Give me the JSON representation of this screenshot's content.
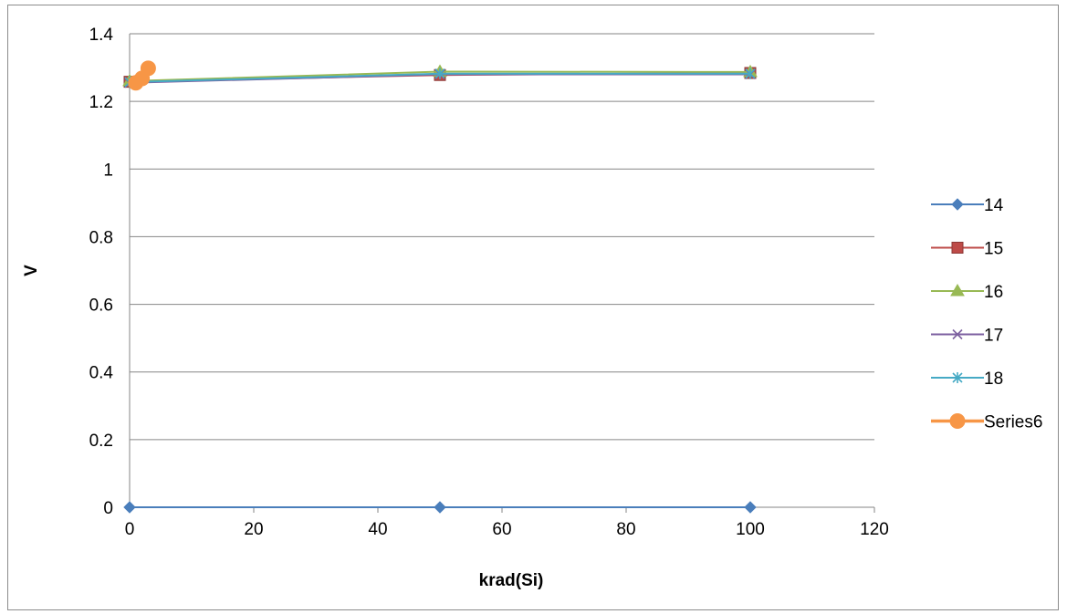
{
  "chart_data": {
    "type": "scatter",
    "title": "",
    "xlabel": "krad(Si)",
    "ylabel": "V",
    "xlim": [
      0,
      120
    ],
    "ylim": [
      0,
      1.4
    ],
    "xticks": [
      "0",
      "20",
      "40",
      "60",
      "80",
      "100",
      "120"
    ],
    "yticks": [
      "0",
      "0.2",
      "0.4",
      "0.6",
      "0.8",
      "1",
      "1.2",
      "1.4"
    ],
    "grid": "horizontal",
    "legend_position": "right",
    "series": [
      {
        "name": "14",
        "color": "#4a7ebb",
        "marker": "diamond",
        "x": [
          0,
          50,
          100
        ],
        "y": [
          0,
          0,
          0
        ]
      },
      {
        "name": "15",
        "color": "#be4b48",
        "marker": "square",
        "x": [
          0,
          50,
          100
        ],
        "y": [
          1.258,
          1.278,
          1.284
        ]
      },
      {
        "name": "16",
        "color": "#98b954",
        "marker": "triangle",
        "x": [
          0,
          50,
          100
        ],
        "y": [
          1.26,
          1.288,
          1.287
        ]
      },
      {
        "name": "17",
        "color": "#7d60a0",
        "marker": "x",
        "x": [
          0,
          50,
          100
        ],
        "y": [
          1.255,
          1.28,
          1.28
        ]
      },
      {
        "name": "18",
        "color": "#46aac5",
        "marker": "star",
        "x": [
          0,
          50,
          100
        ],
        "y": [
          1.257,
          1.282,
          1.282
        ]
      },
      {
        "name": "Series6",
        "color": "#f79646",
        "marker": "circle",
        "x": [
          1,
          2,
          3
        ],
        "y": [
          1.255,
          1.268,
          1.298
        ]
      }
    ]
  }
}
